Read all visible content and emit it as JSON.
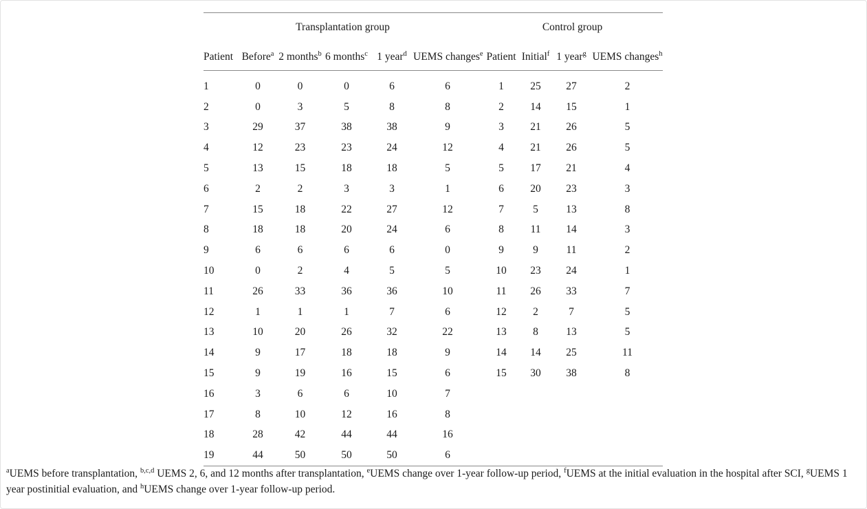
{
  "table": {
    "group_headers": [
      {
        "label": "Transplantation group",
        "colspan": 6
      },
      {
        "label": "Control group",
        "colspan": 4
      }
    ],
    "columns": [
      {
        "label": "Patient",
        "sup": ""
      },
      {
        "label": "Before",
        "sup": "a"
      },
      {
        "label": "2 months",
        "sup": "b"
      },
      {
        "label": "6 months",
        "sup": "c"
      },
      {
        "label": "1 year",
        "sup": "d"
      },
      {
        "label": "UEMS changes",
        "sup": "e"
      },
      {
        "label": "Patient",
        "sup": ""
      },
      {
        "label": "Initial",
        "sup": "f"
      },
      {
        "label": "1 year",
        "sup": "g"
      },
      {
        "label": "UEMS changes",
        "sup": "h"
      }
    ],
    "rows": [
      [
        "1",
        "0",
        "0",
        "0",
        "6",
        "6",
        "1",
        "25",
        "27",
        "2"
      ],
      [
        "2",
        "0",
        "3",
        "5",
        "8",
        "8",
        "2",
        "14",
        "15",
        "1"
      ],
      [
        "3",
        "29",
        "37",
        "38",
        "38",
        "9",
        "3",
        "21",
        "26",
        "5"
      ],
      [
        "4",
        "12",
        "23",
        "23",
        "24",
        "12",
        "4",
        "21",
        "26",
        "5"
      ],
      [
        "5",
        "13",
        "15",
        "18",
        "18",
        "5",
        "5",
        "17",
        "21",
        "4"
      ],
      [
        "6",
        "2",
        "2",
        "3",
        "3",
        "1",
        "6",
        "20",
        "23",
        "3"
      ],
      [
        "7",
        "15",
        "18",
        "22",
        "27",
        "12",
        "7",
        "5",
        "13",
        "8"
      ],
      [
        "8",
        "18",
        "18",
        "20",
        "24",
        "6",
        "8",
        "11",
        "14",
        "3"
      ],
      [
        "9",
        "6",
        "6",
        "6",
        "6",
        "0",
        "9",
        "9",
        "11",
        "2"
      ],
      [
        "10",
        "0",
        "2",
        "4",
        "5",
        "5",
        "10",
        "23",
        "24",
        "1"
      ],
      [
        "11",
        "26",
        "33",
        "36",
        "36",
        "10",
        "11",
        "26",
        "33",
        "7"
      ],
      [
        "12",
        "1",
        "1",
        "1",
        "7",
        "6",
        "12",
        "2",
        "7",
        "5"
      ],
      [
        "13",
        "10",
        "20",
        "26",
        "32",
        "22",
        "13",
        "8",
        "13",
        "5"
      ],
      [
        "14",
        "9",
        "17",
        "18",
        "18",
        "9",
        "14",
        "14",
        "25",
        "11"
      ],
      [
        "15",
        "9",
        "19",
        "16",
        "15",
        "6",
        "15",
        "30",
        "38",
        "8"
      ],
      [
        "16",
        "3",
        "6",
        "6",
        "10",
        "7",
        "",
        "",
        "",
        ""
      ],
      [
        "17",
        "8",
        "10",
        "12",
        "16",
        "8",
        "",
        "",
        "",
        ""
      ],
      [
        "18",
        "28",
        "42",
        "44",
        "44",
        "16",
        "",
        "",
        "",
        ""
      ],
      [
        "19",
        "44",
        "50",
        "50",
        "50",
        "6",
        "",
        "",
        "",
        ""
      ]
    ]
  },
  "footnote": {
    "segments": [
      {
        "sup": "a",
        "text": "UEMS before transplantation, "
      },
      {
        "sup": "b,c,d",
        "text": " UEMS 2, 6, and 12 months after transplantation, "
      },
      {
        "sup": "e",
        "text": "UEMS change over 1-year follow-up period, "
      },
      {
        "sup": "f",
        "text": "UEMS at the initial evaluation in the hospital after SCI, "
      },
      {
        "sup": "g",
        "text": "UEMS 1 year postinitial evaluation, and "
      },
      {
        "sup": "h",
        "text": "UEMS change over 1-year follow-up period."
      }
    ]
  },
  "colors": {
    "text": "#1a1a1a",
    "rule": "#888888",
    "page_border": "#e2e2e2",
    "background": "#ffffff"
  }
}
